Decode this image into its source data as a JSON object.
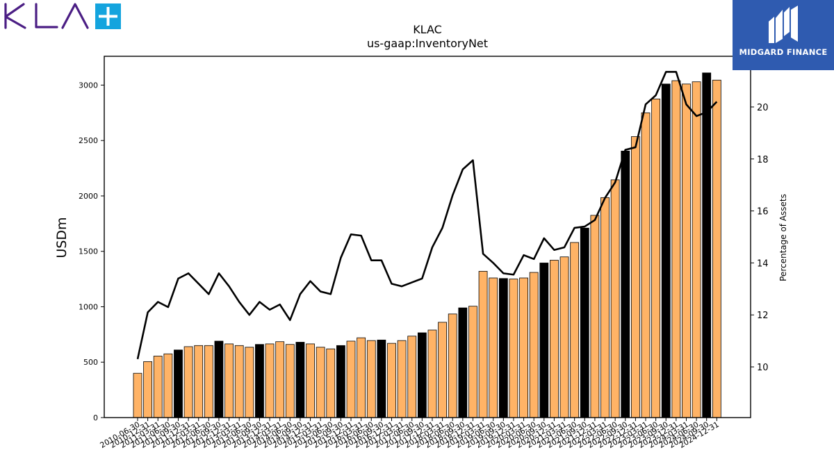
{
  "brand": {
    "left_logo": "KLA",
    "right_logo": "MIDGARD FINANCE"
  },
  "chart_data": {
    "type": "bar",
    "title": "KLAC",
    "subtitle": "us-gaap:InventoryNet",
    "ylabel": "USDm",
    "y2label": "Percentage of Assets",
    "ylim": [
      0,
      3260
    ],
    "y2lim": [
      8.05,
      21.95
    ],
    "yticks": [
      0,
      500,
      1000,
      1500,
      2000,
      2500,
      3000
    ],
    "y2ticks": [
      10,
      12,
      14,
      16,
      18,
      20
    ],
    "grid": false,
    "colors": {
      "bar_quarter": "#ffb366",
      "bar_fiscal_year_end": "#000000",
      "line": "#000000"
    },
    "categories": [
      "2010-06-30",
      "2010-12-31",
      "2011-03-31",
      "2011-06-30",
      "2011-09-30",
      "2011-12-31",
      "2012-03-31",
      "2012-06-30",
      "2012-09-30",
      "2012-12-31",
      "2013-03-31",
      "2013-06-30",
      "2013-09-30",
      "2013-12-31",
      "2014-03-31",
      "2014-06-30",
      "2014-09-30",
      "2014-12-31",
      "2015-03-31",
      "2015-06-30",
      "2015-09-30",
      "2015-12-31",
      "2016-03-31",
      "2016-06-30",
      "2016-09-30",
      "2016-12-31",
      "2017-03-31",
      "2017-06-30",
      "2017-09-30",
      "2017-12-31",
      "2018-03-31",
      "2018-06-30",
      "2018-09-30",
      "2018-12-31",
      "2019-03-31",
      "2019-06-30",
      "2019-09-30",
      "2019-12-31",
      "2020-03-31",
      "2020-06-30",
      "2020-09-30",
      "2020-12-31",
      "2021-03-31",
      "2021-06-30",
      "2021-09-30",
      "2021-12-31",
      "2022-03-31",
      "2022-06-30",
      "2022-09-30",
      "2022-12-31",
      "2023-03-31",
      "2023-06-30",
      "2023-09-30",
      "2023-12-31",
      "2024-03-31",
      "2024-06-30",
      "2024-09-30",
      "2024-12-31"
    ],
    "series": [
      {
        "type": "bar",
        "values": [
          400,
          505,
          555,
          575,
          610,
          640,
          650,
          650,
          690,
          665,
          650,
          635,
          660,
          665,
          685,
          660,
          680,
          665,
          635,
          620,
          650,
          690,
          720,
          695,
          700,
          670,
          695,
          735,
          765,
          790,
          860,
          935,
          990,
          1005,
          1320,
          1260,
          1255,
          1250,
          1260,
          1310,
          1395,
          1420,
          1450,
          1580,
          1710,
          1825,
          1985,
          2145,
          2405,
          2535,
          2750,
          2875,
          3010,
          3040,
          3010,
          3030,
          3110,
          3045
        ]
      },
      {
        "type": "line",
        "values": [
          10.3,
          12.1,
          12.5,
          12.3,
          13.4,
          13.6,
          13.2,
          12.8,
          13.6,
          13.1,
          12.5,
          12.0,
          12.5,
          12.2,
          12.4,
          11.8,
          12.8,
          13.3,
          12.9,
          12.8,
          14.2,
          15.1,
          15.05,
          14.1,
          14.1,
          13.2,
          13.1,
          13.25,
          13.4,
          14.6,
          15.35,
          16.6,
          17.6,
          17.95,
          14.35,
          14.0,
          13.6,
          13.55,
          14.3,
          14.15,
          14.95,
          14.5,
          14.6,
          15.35,
          15.4,
          15.65,
          16.5,
          17.1,
          18.35,
          18.45,
          20.1,
          20.45,
          21.35,
          21.35,
          20.1,
          19.65,
          19.8,
          20.2
        ]
      }
    ]
  }
}
